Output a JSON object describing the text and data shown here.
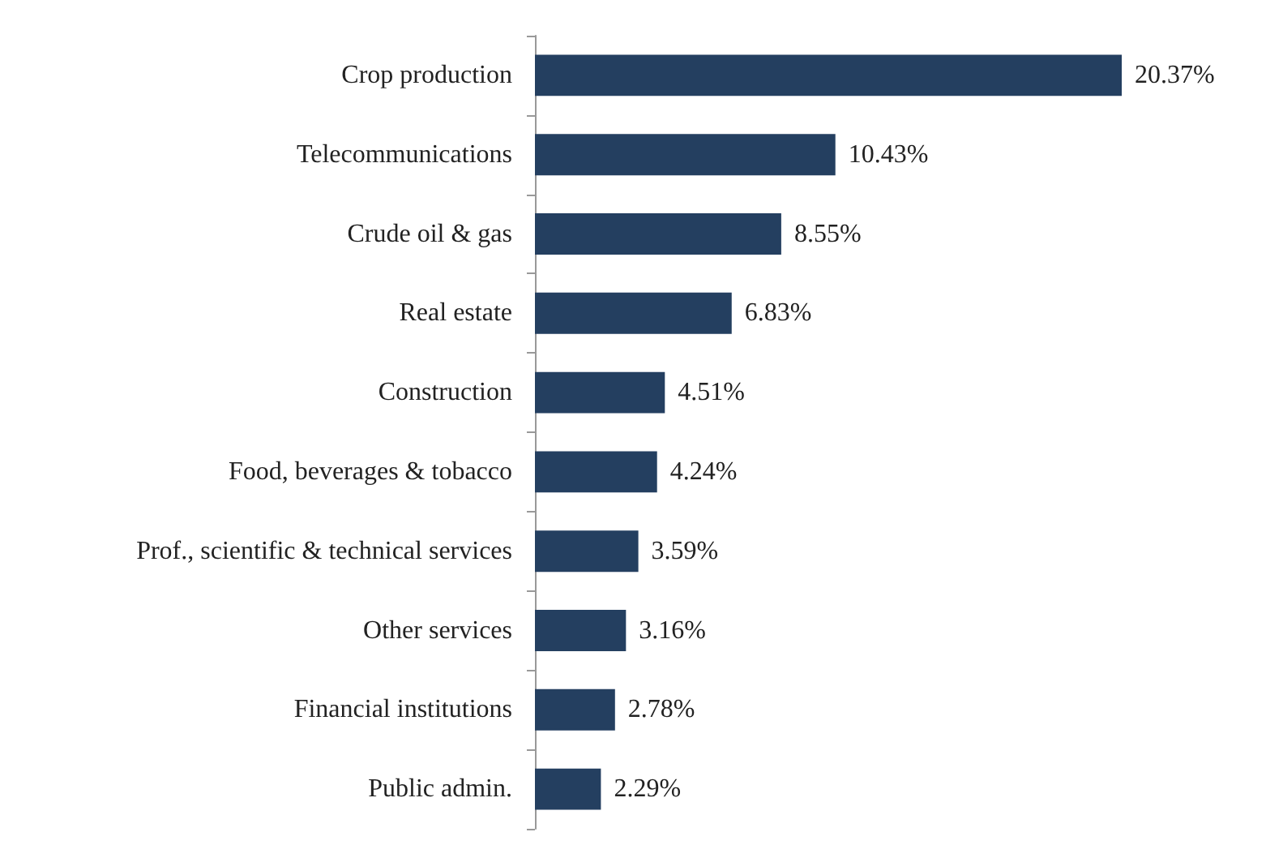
{
  "chart_data": {
    "type": "bar",
    "orientation": "horizontal",
    "categories": [
      "Crop production",
      "Telecommunications",
      "Crude oil & gas",
      "Real estate",
      "Construction",
      "Food, beverages & tobacco",
      "Prof., scientific & technical services",
      "Other services",
      "Financial institutions",
      "Public admin."
    ],
    "values": [
      20.37,
      10.43,
      8.55,
      6.83,
      4.51,
      4.24,
      3.59,
      3.16,
      2.78,
      2.29
    ],
    "value_labels": [
      "20.37%",
      "10.43%",
      "8.55%",
      "6.83%",
      "4.51%",
      "4.24%",
      "3.59%",
      "3.16%",
      "2.78%",
      "2.29%"
    ],
    "color": "#243f60"
  }
}
